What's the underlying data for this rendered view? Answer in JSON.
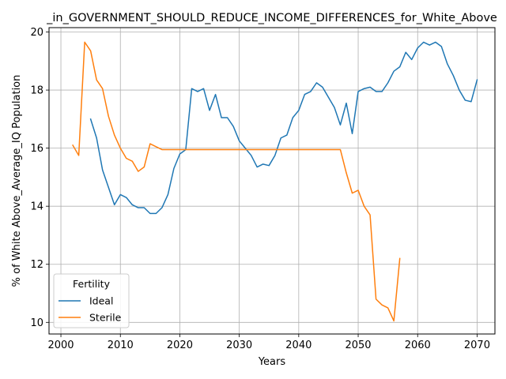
{
  "chart_data": {
    "type": "line",
    "title": "_in_GOVERNMENT_SHOULD_REDUCE_INCOME_DIFFERENCES_for_White_Above",
    "xlabel": "Years",
    "ylabel": "% of White Above_Average_IQ Population",
    "xlim": [
      1998,
      2073
    ],
    "ylim": [
      9.6,
      20.15
    ],
    "xticks": [
      2000,
      2010,
      2020,
      2030,
      2040,
      2050,
      2060,
      2070
    ],
    "yticks": [
      10,
      12,
      14,
      16,
      18,
      20
    ],
    "grid": true,
    "legend": {
      "title": "Fertility",
      "placement": "lower-left"
    },
    "series": [
      {
        "name": "Ideal",
        "color": "#1f77b4",
        "x": [
          2005,
          2006,
          2007,
          2008,
          2009,
          2010,
          2011,
          2012,
          2013,
          2014,
          2015,
          2016,
          2017,
          2018,
          2019,
          2020,
          2021,
          2022,
          2023,
          2024,
          2025,
          2026,
          2027,
          2028,
          2029,
          2030,
          2031,
          2032,
          2033,
          2034,
          2035,
          2036,
          2037,
          2038,
          2039,
          2040,
          2041,
          2042,
          2043,
          2044,
          2045,
          2046,
          2047,
          2048,
          2049,
          2050,
          2051,
          2052,
          2053,
          2054,
          2055,
          2056,
          2057,
          2058,
          2059,
          2060,
          2061,
          2062,
          2063,
          2064,
          2065,
          2066,
          2067,
          2068,
          2069,
          2070
        ],
        "values": [
          17.0,
          16.35,
          15.25,
          14.65,
          14.05,
          14.4,
          14.3,
          14.05,
          13.95,
          13.95,
          13.75,
          13.75,
          13.95,
          14.4,
          15.3,
          15.8,
          15.95,
          18.05,
          17.95,
          18.05,
          17.3,
          17.85,
          17.05,
          17.05,
          16.75,
          16.25,
          16.0,
          15.75,
          15.35,
          15.45,
          15.4,
          15.75,
          16.35,
          16.45,
          17.05,
          17.3,
          17.85,
          17.95,
          18.25,
          18.1,
          17.75,
          17.4,
          16.8,
          17.55,
          16.5,
          17.95,
          18.05,
          18.1,
          17.95,
          17.95,
          18.25,
          18.65,
          18.8,
          19.3,
          19.05,
          19.45,
          19.65,
          19.55,
          19.65,
          19.5,
          18.9,
          18.5,
          18.0,
          17.65,
          17.6,
          18.35
        ]
      },
      {
        "name": "Sterile",
        "color": "#ff7f0e",
        "x": [
          2002,
          2003,
          2004,
          2005,
          2006,
          2007,
          2008,
          2009,
          2010,
          2011,
          2012,
          2013,
          2014,
          2015,
          2016,
          2017,
          2018,
          2019,
          2020,
          2021,
          2022,
          2023,
          2024,
          2025,
          2026,
          2027,
          2028,
          2029,
          2030,
          2031,
          2032,
          2033,
          2034,
          2035,
          2036,
          2037,
          2038,
          2039,
          2040,
          2041,
          2042,
          2043,
          2044,
          2045,
          2046,
          2047,
          2048,
          2049,
          2050,
          2051,
          2052,
          2053,
          2054,
          2055,
          2056,
          2057
        ],
        "values": [
          16.1,
          15.75,
          19.65,
          19.35,
          18.35,
          18.05,
          17.1,
          16.45,
          16.0,
          15.65,
          15.55,
          15.2,
          15.35,
          16.15,
          16.05,
          15.95,
          15.95,
          15.95,
          15.95,
          15.95,
          15.95,
          15.95,
          15.95,
          15.95,
          15.95,
          15.95,
          15.95,
          15.95,
          15.95,
          15.95,
          15.95,
          15.95,
          15.95,
          15.95,
          15.95,
          15.95,
          15.95,
          15.95,
          15.95,
          15.95,
          15.95,
          15.95,
          15.95,
          15.95,
          15.95,
          15.95,
          15.15,
          14.45,
          14.55,
          14.0,
          13.7,
          10.8,
          10.6,
          10.5,
          10.05,
          12.2
        ]
      }
    ]
  }
}
